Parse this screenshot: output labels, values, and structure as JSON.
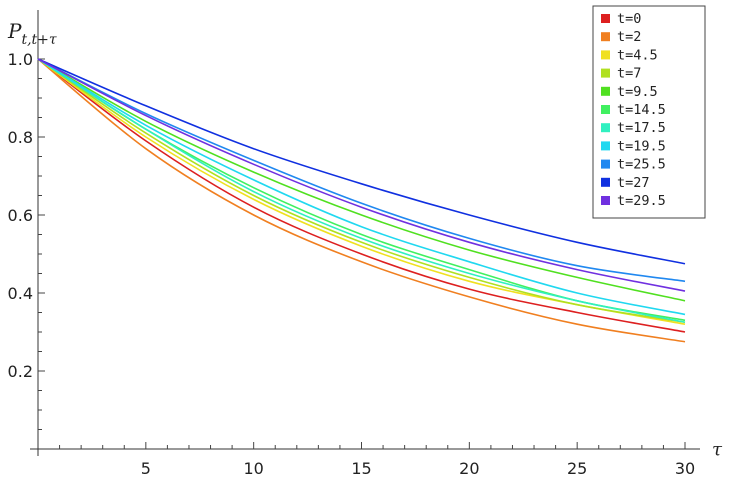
{
  "chart_data": {
    "type": "line",
    "ylabel_main": "P",
    "ylabel_sub": "t,t+τ",
    "xlabel": "τ",
    "xlim": [
      0,
      30
    ],
    "ylim": [
      0,
      1.05
    ],
    "x_ticks": [
      5,
      10,
      15,
      20,
      25,
      30
    ],
    "y_ticks": [
      0.2,
      0.4,
      0.6,
      0.8,
      1.0
    ],
    "y_tick_labels": [
      "0.2",
      "0.4",
      "0.6",
      "0.8",
      "1.0"
    ],
    "legend_position": "top-right",
    "grid": false,
    "x": [
      0,
      5,
      10,
      15,
      20,
      25,
      30
    ],
    "series": [
      {
        "name": "t=0",
        "color": "#dd2020",
        "values": [
          1.0,
          0.79,
          0.62,
          0.5,
          0.41,
          0.35,
          0.3
        ]
      },
      {
        "name": "t=2",
        "color": "#f07f20",
        "values": [
          1.0,
          0.77,
          0.6,
          0.48,
          0.39,
          0.32,
          0.275
        ]
      },
      {
        "name": "t=4.5",
        "color": "#f0e020",
        "values": [
          1.0,
          0.8,
          0.64,
          0.52,
          0.43,
          0.37,
          0.32
        ]
      },
      {
        "name": "t=7",
        "color": "#b0e020",
        "values": [
          1.0,
          0.81,
          0.65,
          0.53,
          0.44,
          0.37,
          0.325
        ]
      },
      {
        "name": "t=9.5",
        "color": "#50e020",
        "values": [
          1.0,
          0.84,
          0.71,
          0.6,
          0.51,
          0.44,
          0.38
        ]
      },
      {
        "name": "t=14.5",
        "color": "#40f060",
        "values": [
          1.0,
          0.82,
          0.67,
          0.55,
          0.46,
          0.38,
          0.33
        ]
      },
      {
        "name": "t=17.5",
        "color": "#30f0c0",
        "values": [
          1.0,
          0.82,
          0.66,
          0.54,
          0.45,
          0.38,
          0.325
        ]
      },
      {
        "name": "t=19.5",
        "color": "#20d8f0",
        "values": [
          1.0,
          0.83,
          0.69,
          0.57,
          0.48,
          0.4,
          0.345
        ]
      },
      {
        "name": "t=25.5",
        "color": "#2088f0",
        "values": [
          1.0,
          0.86,
          0.74,
          0.63,
          0.54,
          0.47,
          0.43
        ]
      },
      {
        "name": "t=27",
        "color": "#1030e0",
        "values": [
          1.0,
          0.88,
          0.77,
          0.68,
          0.6,
          0.53,
          0.475
        ]
      },
      {
        "name": "t=29.5",
        "color": "#7030e0",
        "values": [
          1.0,
          0.855,
          0.73,
          0.62,
          0.53,
          0.46,
          0.405
        ]
      }
    ]
  }
}
